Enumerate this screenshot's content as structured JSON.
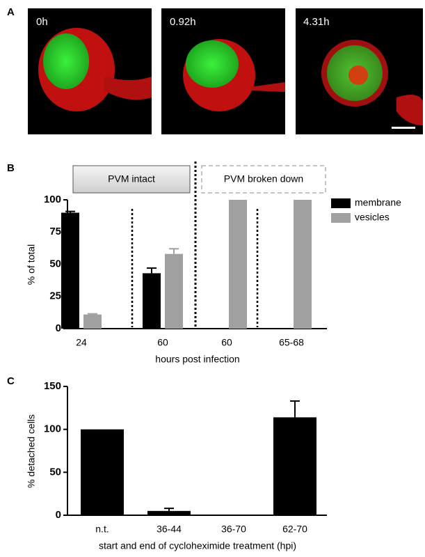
{
  "figure": {
    "panel_labels": [
      "A",
      "B",
      "C"
    ],
    "image_labels": [
      "0h",
      "0.92h",
      "4.31h"
    ]
  },
  "chart_data": [
    {
      "type": "bar",
      "ylabel": "% of total",
      "xlabel": "hours post infection",
      "annotations": [
        "PVM intact",
        "PVM broken down"
      ],
      "categories": [
        "24",
        "60",
        "60",
        "65-68"
      ],
      "series": [
        {
          "name": "membrane",
          "color": "#000000",
          "values": [
            90,
            43,
            0,
            0
          ],
          "errors": [
            1,
            4,
            null,
            null
          ]
        },
        {
          "name": "vesicles",
          "color": "#a0a0a0",
          "values": [
            11,
            58,
            100,
            100
          ],
          "errors": [
            0.5,
            4,
            null,
            null
          ]
        }
      ],
      "ylim": [
        0,
        100
      ],
      "yticks": [
        0,
        25,
        50,
        75,
        100
      ]
    },
    {
      "type": "bar",
      "ylabel": "% detached cells",
      "xlabel": "start and end of cycloheximide treatment (hpi)",
      "categories": [
        "n.t.",
        "36-44",
        "36-70",
        "62-70"
      ],
      "values": [
        100,
        5,
        0,
        114
      ],
      "errors": [
        null,
        3,
        null,
        19
      ],
      "color": "#000000",
      "ylim": [
        0,
        150
      ],
      "yticks": [
        0,
        50,
        100,
        150
      ]
    }
  ]
}
